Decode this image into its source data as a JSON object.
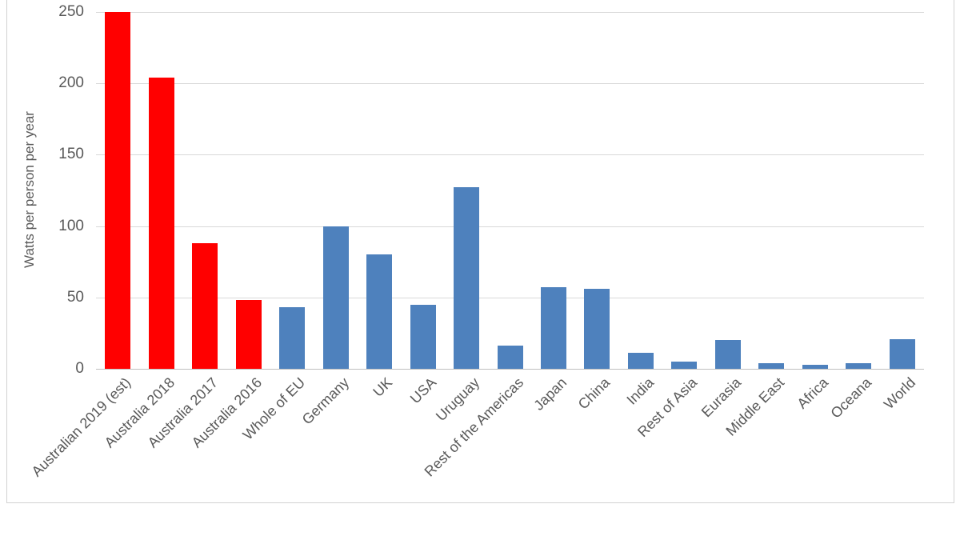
{
  "page": {
    "background": "#FFFFFF",
    "frame_border_color": "#D2D2D2"
  },
  "chart_data": {
    "type": "bar",
    "title": "",
    "ylabel": "Watts per person per year",
    "xlabel": "",
    "ylim": [
      0,
      250
    ],
    "yticks": [
      0,
      50,
      100,
      150,
      200,
      250
    ],
    "grid": "horizontal",
    "legend": "none",
    "gridline_color": "#D9D9D9",
    "axis_line_color": "#BFBFBF",
    "text_color": "#595959",
    "red_color": "#FF0000",
    "blue_color": "#4E81BD",
    "categories": [
      "Australian 2019 (est)",
      "Australia 2018",
      "Australia 2017",
      "Australia 2016",
      "Whole of EU",
      "Germany",
      "UK",
      "USA",
      "Uruguay",
      "Rest of the Americas",
      "Japan",
      "China",
      "India",
      "Rest of Asia",
      "Eurasia",
      "Middle East",
      "Africa",
      "Oceana",
      "World"
    ],
    "values": [
      250,
      204,
      88,
      48,
      43,
      100,
      80,
      45,
      127,
      16,
      57,
      56,
      11,
      5,
      20,
      4,
      3,
      4,
      21
    ],
    "bar_colors": [
      "#FF0000",
      "#FF0000",
      "#FF0000",
      "#FF0000",
      "#4E81BD",
      "#4E81BD",
      "#4E81BD",
      "#4E81BD",
      "#4E81BD",
      "#4E81BD",
      "#4E81BD",
      "#4E81BD",
      "#4E81BD",
      "#4E81BD",
      "#4E81BD",
      "#4E81BD",
      "#4E81BD",
      "#4E81BD",
      "#4E81BD"
    ]
  }
}
